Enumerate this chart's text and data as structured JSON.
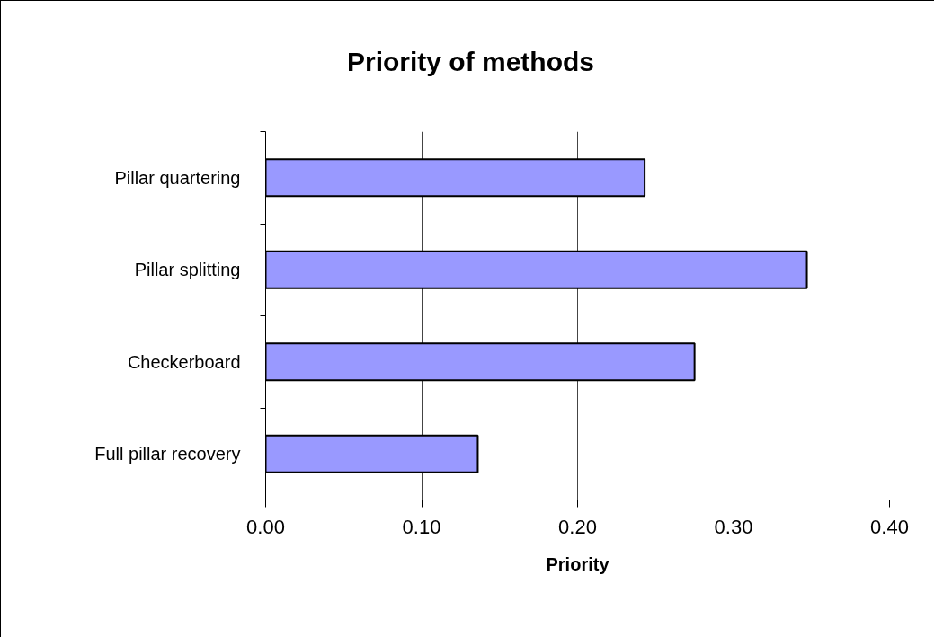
{
  "chart_data": {
    "type": "bar",
    "orientation": "horizontal",
    "title": "Priority of methods",
    "xlabel": "Priority",
    "categories": [
      "Pillar quartering",
      "Pillar splitting",
      "Checkerboard",
      "Full pillar recovery"
    ],
    "values": [
      0.243,
      0.347,
      0.275,
      0.136
    ],
    "color": "#9999ff",
    "xlim": [
      0,
      0.4
    ],
    "xticks": [
      {
        "value": 0,
        "label": "0.00"
      },
      {
        "value": 0.1,
        "label": "0.10"
      },
      {
        "value": 0.2,
        "label": "0.20"
      },
      {
        "value": 0.3,
        "label": "0.30"
      },
      {
        "value": 0.4,
        "label": "0.40"
      }
    ],
    "grid": "x"
  }
}
